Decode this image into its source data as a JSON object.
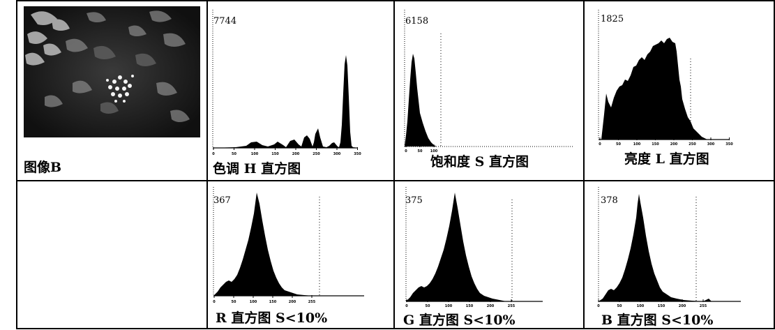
{
  "image_label": "图像B",
  "panels": {
    "hue": {
      "caption": "色调 H 直方图",
      "peak": "7744",
      "ticks": [
        "0",
        "50",
        "100",
        "150",
        "200",
        "250",
        "300",
        "350"
      ]
    },
    "saturation": {
      "caption": "饱和度 S 直方图",
      "peak": "6158",
      "ticks": [
        "0",
        "50",
        "100"
      ]
    },
    "lightness": {
      "caption": "亮度 L 直方图",
      "peak": "1825",
      "ticks": [
        "0",
        "50",
        "100",
        "150",
        "200",
        "250",
        "300",
        "350"
      ]
    },
    "red": {
      "caption": "R 直方图 S<10%",
      "peak": "367",
      "ticks": [
        "0",
        "50",
        "100",
        "150",
        "200",
        "255"
      ]
    },
    "green": {
      "caption": "G 直方图 S<10%",
      "peak": "375",
      "ticks": [
        "0",
        "50",
        "100",
        "150",
        "200",
        "255"
      ]
    },
    "blue": {
      "caption": "B 直方图 S<10%",
      "peak": "378",
      "ticks": [
        "0",
        "50",
        "100",
        "150",
        "200",
        "255"
      ]
    }
  },
  "colors": {
    "fill": "#000000",
    "border": "#000000",
    "background": "#ffffff"
  }
}
